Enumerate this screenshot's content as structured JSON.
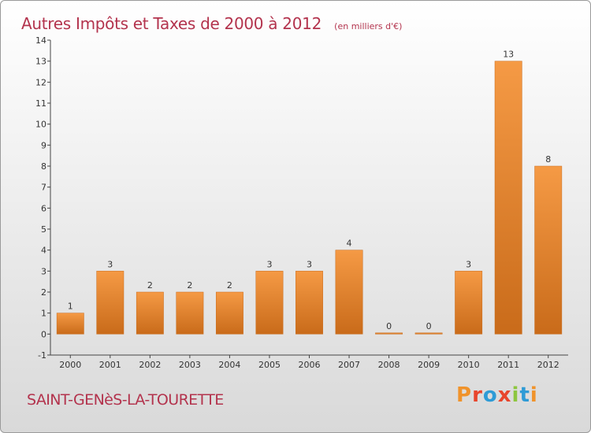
{
  "chart_data": {
    "type": "bar",
    "title": "Autres Impôts et Taxes de 2000 à 2012",
    "subtitle": "(en milliers d'€)",
    "categories": [
      "2000",
      "2001",
      "2002",
      "2003",
      "2004",
      "2005",
      "2006",
      "2007",
      "2008",
      "2009",
      "2010",
      "2011",
      "2012"
    ],
    "values": [
      1,
      3,
      2,
      2,
      2,
      3,
      3,
      4,
      0,
      0,
      3,
      13,
      8
    ],
    "ylim": [
      -1,
      14
    ],
    "yticks": [
      -1,
      0,
      1,
      2,
      3,
      4,
      5,
      6,
      7,
      8,
      9,
      10,
      11,
      12,
      13,
      14
    ],
    "xlabel": "",
    "ylabel": "",
    "grid": false,
    "bar_color": "#f59a45",
    "bar_color_dark": "#c96b1a"
  },
  "footer": {
    "commune": "SAINT-GENèS-LA-TOURETTE",
    "brand": "Proxiti",
    "brand_colors": [
      "#f0932b",
      "#e8452c",
      "#2e9bd6",
      "#e8452c",
      "#8dc63f",
      "#2e9bd6",
      "#f0932b"
    ]
  }
}
